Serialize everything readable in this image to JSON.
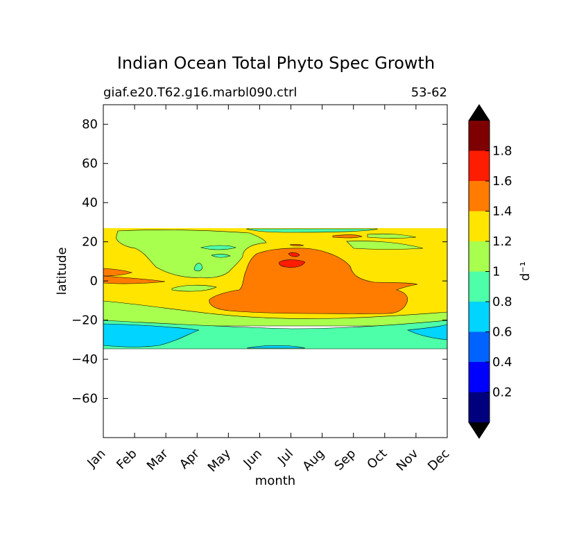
{
  "chart_data": {
    "type": "contour",
    "title": "Indian Ocean Total Phyto Spec Growth",
    "subtitle_left": "giaf.e20.T62.g16.marbl090.ctrl",
    "subtitle_right": "53-62",
    "xlabel": "month",
    "ylabel": "latitude",
    "x_categories": [
      "Jan",
      "Feb",
      "Mar",
      "Apr",
      "May",
      "Jun",
      "Jul",
      "Aug",
      "Sep",
      "Oct",
      "Nov",
      "Dec"
    ],
    "xlim": [
      0,
      11
    ],
    "ylim": [
      -80,
      90
    ],
    "yticks": [
      80,
      60,
      40,
      20,
      0,
      -20,
      -40,
      -60
    ],
    "ytick_labels": [
      "80",
      "60",
      "40",
      "20",
      "0",
      "−20",
      "−40",
      "−60"
    ],
    "data_lat_range": [
      -34,
      27
    ],
    "colorbar": {
      "label": "d⁻¹",
      "levels": [
        0,
        0.2,
        0.4,
        0.6,
        0.8,
        1.0,
        1.2,
        1.4,
        1.6,
        1.8,
        2.0
      ],
      "tick_labels": [
        "0.2",
        "0.4",
        "0.6",
        "0.8",
        "1",
        "1.2",
        "1.4",
        "1.6",
        "1.8"
      ],
      "colors": [
        "#00007f",
        "#0000ff",
        "#0063ff",
        "#00d4ff",
        "#4dffa9",
        "#a9ff4d",
        "#ffe500",
        "#ff7c00",
        "#ff1d00",
        "#7f0000"
      ],
      "extend": "both",
      "under_color": "#000000",
      "over_color": "#000000"
    },
    "regions": [
      {
        "level_range": [
          1.2,
          1.4
        ],
        "description": "background band 27N to -13S"
      },
      {
        "level_range": [
          1.4,
          1.6
        ],
        "description": "Jun-Sep core 17N to -16S"
      },
      {
        "level_range": [
          1.6,
          1.8
        ],
        "description": "Jul maximum near 10N"
      },
      {
        "level_range": [
          1.0,
          1.2
        ],
        "description": "Feb-May 25N to 5N and band -13 to -20"
      },
      {
        "level_range": [
          0.8,
          1.0
        ],
        "description": "band -20 to -34"
      },
      {
        "level_range": [
          0.6,
          0.8
        ],
        "description": "Jan-Mar and Nov-Dec near -28"
      }
    ]
  }
}
